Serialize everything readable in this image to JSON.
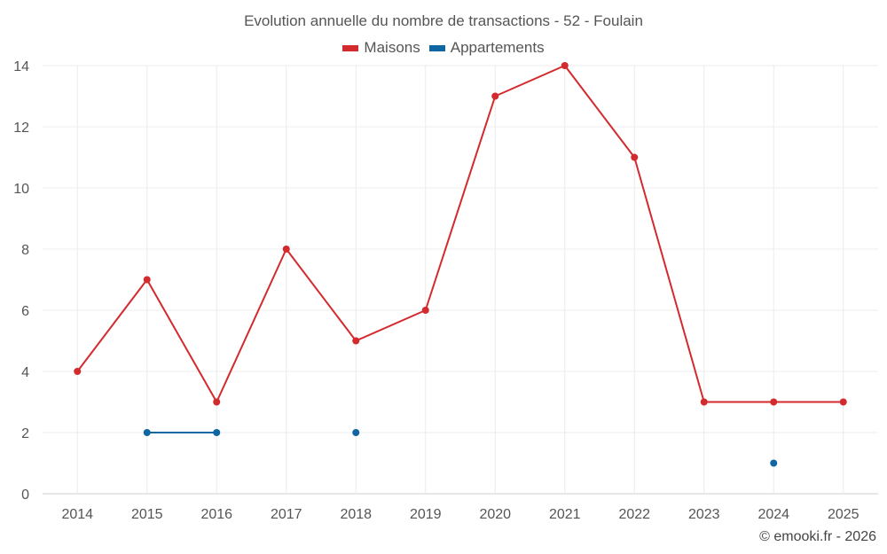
{
  "chart_data": {
    "type": "line",
    "title": "Evolution annuelle du nombre de transactions - 52 - Foulain",
    "categories": [
      "2014",
      "2015",
      "2016",
      "2017",
      "2018",
      "2019",
      "2020",
      "2021",
      "2022",
      "2023",
      "2024",
      "2025"
    ],
    "series": [
      {
        "name": "Maisons",
        "color": "#d32a2d",
        "values": [
          4,
          7,
          3,
          8,
          5,
          6,
          13,
          14,
          11,
          3,
          3,
          3
        ]
      },
      {
        "name": "Appartements",
        "color": "#0f66a0",
        "values": [
          null,
          2,
          2,
          null,
          2,
          null,
          null,
          null,
          null,
          null,
          1,
          null
        ]
      }
    ],
    "ylim": [
      0,
      14
    ],
    "yticks": [
      0,
      2,
      4,
      6,
      8,
      10,
      12,
      14
    ],
    "grid": true,
    "legend_position": "top-center",
    "xlabel": "",
    "ylabel": ""
  },
  "credit": "© emooki.fr - 2026"
}
